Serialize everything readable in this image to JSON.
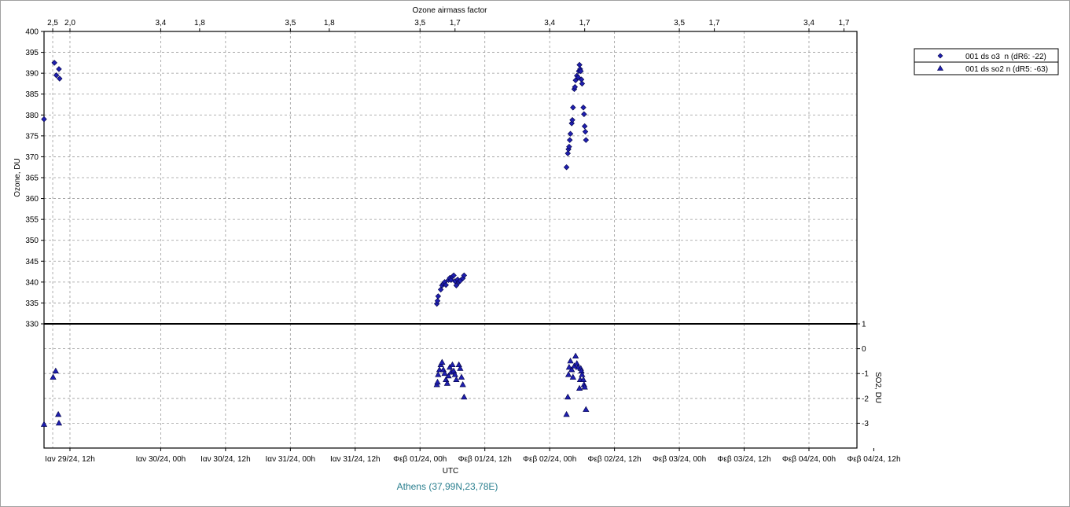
{
  "chart_data": {
    "type": "scatter",
    "top_axis": {
      "title": "Ozone airmass factor",
      "ticks": [
        {
          "t": -0.333,
          "label": "2,5"
        },
        {
          "t": -0.2,
          "label": "2,0"
        },
        {
          "t": 0.5,
          "label": "3,4"
        },
        {
          "t": 0.8,
          "label": "1,8"
        },
        {
          "t": 1.5,
          "label": "3,5"
        },
        {
          "t": 1.8,
          "label": "1,8"
        },
        {
          "t": 2.5,
          "label": "3,5"
        },
        {
          "t": 2.77,
          "label": "1,7"
        },
        {
          "t": 3.5,
          "label": "3,4"
        },
        {
          "t": 3.77,
          "label": "1,7"
        },
        {
          "t": 4.5,
          "label": "3,5"
        },
        {
          "t": 4.77,
          "label": "1,7"
        },
        {
          "t": 5.5,
          "label": "3,4"
        },
        {
          "t": 5.77,
          "label": "1,7"
        }
      ]
    },
    "x_axis": {
      "title": "UTC",
      "range": [
        -0.4,
        5.87
      ],
      "ticks": [
        {
          "t": -0.333,
          "label": "Ιαν 29/24, 00h"
        },
        {
          "t": -0.2,
          "label": "Ιαν 29/24, 12h"
        },
        {
          "t": 0.5,
          "label": "Ιαν 30/24, 00h"
        },
        {
          "t": 1.0,
          "label": "Ιαν 30/24, 12h"
        },
        {
          "t": 1.5,
          "label": "Ιαν 31/24, 00h"
        },
        {
          "t": 2.0,
          "label": "Ιαν 31/24, 12h"
        },
        {
          "t": 2.5,
          "label": "Φεβ 01/24, 00h"
        },
        {
          "t": 3.0,
          "label": "Φεβ 01/24, 12h"
        },
        {
          "t": 3.5,
          "label": "Φεβ 02/24, 00h"
        },
        {
          "t": 4.0,
          "label": "Φεβ 02/24, 12h"
        },
        {
          "t": 4.5,
          "label": "Φεβ 03/24, 00h"
        },
        {
          "t": 5.0,
          "label": "Φεβ 03/24, 12h"
        },
        {
          "t": 5.5,
          "label": "Φεβ 04/24, 00h"
        },
        {
          "t": 6.0,
          "label": "Φεβ 04/24, 12h"
        }
      ]
    },
    "x_tick_labels_visible": [
      "Ιαν 29/24, 12h",
      "Ιαν 30/24, 00h",
      "Ιαν 30/24, 12h",
      "Ιαν 31/24, 00h",
      "Ιαν 31/24, 12h",
      "Φεβ 01/24, 00h",
      "Φεβ 01/24, 12h",
      "Φεβ 02/24, 00h",
      "Φεβ 02/24, 12h",
      "Φεβ 03/24, 00h",
      "Φεβ 03/24, 12h",
      "Φεβ 04/24, 00h",
      "Φεβ 04/24, 12h"
    ],
    "y_axis": {
      "title": "Ozone, DU",
      "range": [
        330,
        400
      ],
      "step": 5
    },
    "y2_axis": {
      "title": "SO2, DU",
      "range": [
        -4,
        1
      ],
      "ticks": [
        1,
        0,
        -1,
        -2,
        -3
      ]
    },
    "station": "Athens (37,99N,23,78E)",
    "legend_position": "top-right",
    "grid": true,
    "series": [
      {
        "name": "001 ds o3  n (dR6: -22)",
        "marker": "diamond",
        "color": "#1f1fb0",
        "points": [
          [
            -0.4,
            379
          ],
          [
            -0.32,
            392.5
          ],
          [
            -0.305,
            389.5
          ],
          [
            -0.285,
            391
          ],
          [
            -0.28,
            388.7
          ],
          [
            2.63,
            334.8
          ],
          [
            2.635,
            335.5
          ],
          [
            2.64,
            336.6
          ],
          [
            2.66,
            338.2
          ],
          [
            2.67,
            339.2
          ],
          [
            2.68,
            339.6
          ],
          [
            2.69,
            340
          ],
          [
            2.7,
            339.3
          ],
          [
            2.72,
            340.5
          ],
          [
            2.73,
            341
          ],
          [
            2.74,
            340.5
          ],
          [
            2.75,
            341.3
          ],
          [
            2.76,
            341.6
          ],
          [
            2.77,
            340.2
          ],
          [
            2.78,
            339.2
          ],
          [
            2.79,
            340.6
          ],
          [
            2.8,
            340
          ],
          [
            2.81,
            340.3
          ],
          [
            2.83,
            340.9
          ],
          [
            2.84,
            341.6
          ],
          [
            3.63,
            367.5
          ],
          [
            3.64,
            370.8
          ],
          [
            3.645,
            371.8
          ],
          [
            3.65,
            372.4
          ],
          [
            3.655,
            374
          ],
          [
            3.66,
            375.5
          ],
          [
            3.67,
            378
          ],
          [
            3.675,
            378.8
          ],
          [
            3.68,
            381.8
          ],
          [
            3.69,
            386.2
          ],
          [
            3.695,
            386.7
          ],
          [
            3.7,
            388.3
          ],
          [
            3.71,
            389.4
          ],
          [
            3.72,
            389
          ],
          [
            3.725,
            390.5
          ],
          [
            3.73,
            392
          ],
          [
            3.735,
            391
          ],
          [
            3.74,
            390.5
          ],
          [
            3.745,
            388.5
          ],
          [
            3.75,
            387.5
          ],
          [
            3.76,
            381.8
          ],
          [
            3.765,
            380.2
          ],
          [
            3.77,
            377.3
          ],
          [
            3.775,
            376
          ],
          [
            3.78,
            374
          ]
        ]
      },
      {
        "name": "001 ds so2 n (dR5: -63)",
        "marker": "triangle",
        "color": "#1f1fb0",
        "points": [
          [
            -0.4,
            -3.05
          ],
          [
            -0.33,
            -1.15
          ],
          [
            -0.31,
            -0.9
          ],
          [
            -0.29,
            -2.65
          ],
          [
            -0.285,
            -3.0
          ],
          [
            2.63,
            -1.45
          ],
          [
            2.635,
            -1.35
          ],
          [
            2.64,
            -1.05
          ],
          [
            2.65,
            -0.85
          ],
          [
            2.66,
            -0.65
          ],
          [
            2.67,
            -0.55
          ],
          [
            2.68,
            -0.85
          ],
          [
            2.69,
            -1.0
          ],
          [
            2.7,
            -1.25
          ],
          [
            2.71,
            -1.4
          ],
          [
            2.72,
            -1.1
          ],
          [
            2.73,
            -0.75
          ],
          [
            2.74,
            -0.95
          ],
          [
            2.75,
            -0.65
          ],
          [
            2.76,
            -0.9
          ],
          [
            2.77,
            -1.05
          ],
          [
            2.78,
            -1.25
          ],
          [
            2.8,
            -0.65
          ],
          [
            2.81,
            -0.8
          ],
          [
            2.82,
            -1.15
          ],
          [
            2.83,
            -1.45
          ],
          [
            2.84,
            -1.95
          ],
          [
            3.63,
            -2.65
          ],
          [
            3.64,
            -1.95
          ],
          [
            3.645,
            -1.05
          ],
          [
            3.65,
            -0.75
          ],
          [
            3.66,
            -0.5
          ],
          [
            3.67,
            -0.85
          ],
          [
            3.68,
            -1.15
          ],
          [
            3.69,
            -0.7
          ],
          [
            3.7,
            -0.3
          ],
          [
            3.71,
            -0.6
          ],
          [
            3.72,
            -0.75
          ],
          [
            3.73,
            -1.6
          ],
          [
            3.735,
            -1.25
          ],
          [
            3.74,
            -0.8
          ],
          [
            3.745,
            -0.9
          ],
          [
            3.75,
            -1.05
          ],
          [
            3.76,
            -1.25
          ],
          [
            3.765,
            -1.45
          ],
          [
            3.77,
            -1.55
          ],
          [
            3.78,
            -2.45
          ]
        ]
      }
    ]
  }
}
